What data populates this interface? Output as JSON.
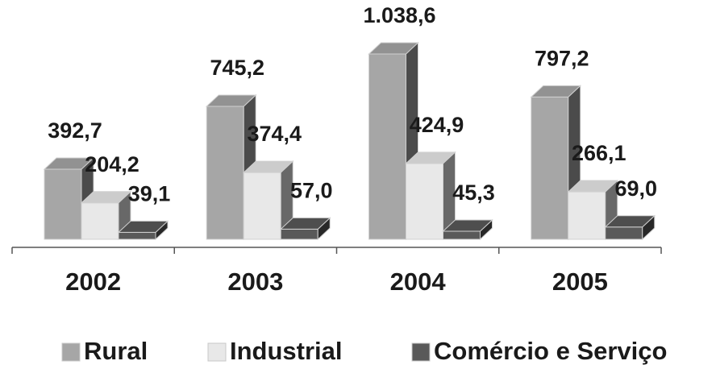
{
  "chart_data": {
    "type": "bar3d",
    "categories": [
      "2002",
      "2003",
      "2004",
      "2005"
    ],
    "series": [
      {
        "name": "Rural",
        "color": "#a6a6a6",
        "values": [
          392.7,
          745.2,
          1038.6,
          797.2
        ],
        "value_labels": [
          "392,7",
          "745,2",
          "1.038,6",
          "797,2"
        ]
      },
      {
        "name": "Industrial",
        "color": "#e8e8e8",
        "values": [
          204.2,
          374.4,
          424.9,
          266.1
        ],
        "value_labels": [
          "204,2",
          "374,4",
          "424,9",
          "266,1"
        ]
      },
      {
        "name": "Comércio e Serviço",
        "color": "#595959",
        "values": [
          39.1,
          57.0,
          45.3,
          69.0
        ],
        "value_labels": [
          "39,1",
          "57,0",
          "45,3",
          "69,0"
        ]
      }
    ]
  }
}
